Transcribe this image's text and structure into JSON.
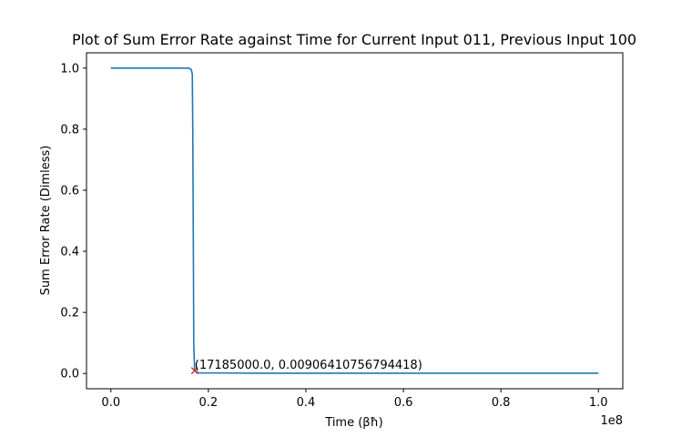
{
  "chart_data": {
    "type": "line",
    "title": "Plot of Sum Error Rate against Time for Current Input 011, Previous Input 100",
    "xlabel": "Time (βħ)",
    "ylabel": "Sum Error Rate (Dimless)",
    "x_offset_label": "1e8",
    "x_scale": 100000000,
    "xlim": [
      -0.05,
      1.05
    ],
    "ylim": [
      -0.05,
      1.05
    ],
    "x_ticks": [
      0.0,
      0.2,
      0.4,
      0.6,
      0.8,
      1.0
    ],
    "x_tick_labels": [
      "0.0",
      "0.2",
      "0.4",
      "0.6",
      "0.8",
      "1.0"
    ],
    "y_ticks": [
      0.0,
      0.2,
      0.4,
      0.6,
      0.8,
      1.0
    ],
    "y_tick_labels": [
      "0.0",
      "0.2",
      "0.4",
      "0.6",
      "0.8",
      "1.0"
    ],
    "grid": false,
    "series": [
      {
        "color": "#1f77b4",
        "x": [
          0.0,
          0.16,
          0.165,
          0.167,
          0.168,
          0.1695,
          0.17,
          0.1718,
          0.18,
          0.3,
          0.5,
          0.7,
          0.9,
          1.0
        ],
        "y": [
          1.0,
          1.0,
          0.995,
          0.98,
          0.8,
          0.3,
          0.1,
          0.009,
          0.002,
          0.001,
          0.001,
          0.001,
          0.001,
          0.001
        ]
      }
    ],
    "markers": [
      {
        "x": 0.17185,
        "y": 0.00906410756794418,
        "symbol": "x",
        "color": "#d62728"
      }
    ],
    "annotations": [
      {
        "text": "(17185000.0, 0.00906410756794418)",
        "x": 0.17185,
        "y": 0.00906410756794418
      }
    ]
  }
}
